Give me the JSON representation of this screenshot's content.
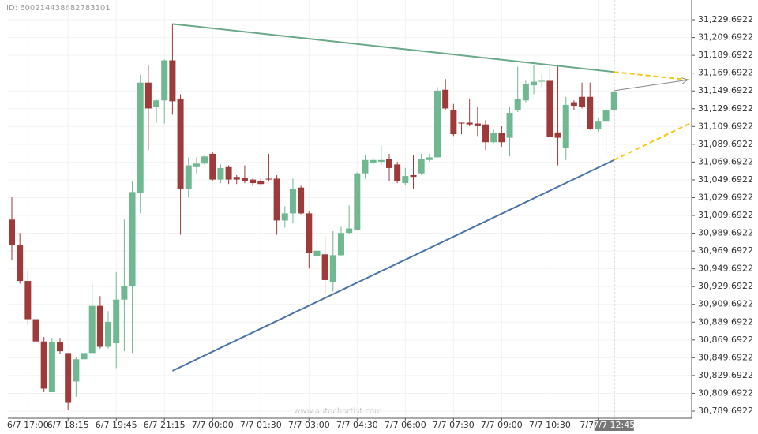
{
  "header": {
    "id_text": "ID: 600214438682783101"
  },
  "watermark": "www.autochartist.com",
  "chart_data": {
    "type": "candlestick",
    "up_color": "#6fb891",
    "down_color": "#9e3a3a",
    "categories": [
      null,
      null,
      "6/7 17:00",
      null,
      null,
      null,
      null,
      "6/7 18:15",
      null,
      null,
      null,
      null,
      null,
      "6/7 19:45",
      null,
      null,
      null,
      null,
      null,
      "6/7 21:15",
      null,
      null,
      null,
      null,
      null,
      "7/7 00:00",
      null,
      null,
      null,
      null,
      null,
      "7/7 01:30",
      null,
      null,
      null,
      null,
      null,
      "7/7 03:00",
      null,
      null,
      null,
      null,
      null,
      "7/7 04:30",
      null,
      null,
      null,
      null,
      null,
      "7/7 06:00",
      null,
      null,
      null,
      null,
      null,
      "7/7 07:30",
      null,
      null,
      null,
      null,
      null,
      "7/7 09:00",
      null,
      null,
      null,
      null,
      null,
      "7/7 10:30",
      null,
      null,
      null,
      null,
      null,
      "7/7",
      null,
      "7/7 12:45"
    ],
    "open": [
      31005,
      30976,
      30936,
      30893,
      30868,
      30811,
      30867,
      30855,
      30823,
      30848,
      30855,
      30908,
      30862,
      30866,
      30915,
      30930,
      31035,
      31159,
      31132,
      31139,
      31184,
      31141,
      31039,
      31064,
      31068,
      31079,
      31050,
      31064,
      31053,
      31052,
      31050,
      31048,
      31051,
      31051,
      31004,
      31012,
      31041,
      31012,
      30964,
      30966,
      30935,
      30965,
      30990,
      30993,
      31057,
      31069,
      31070,
      31073,
      31067,
      31046,
      31055,
      31057,
      31072,
      31075,
      31151,
      31128,
      31114,
      31114,
      31113,
      31112,
      31092,
      31102,
      31097,
      31128,
      31139,
      31156,
      31160,
      31161,
      31103,
      31086,
      31137,
      31143,
      31143,
      31107,
      31116,
      31128
    ],
    "high": [
      31030,
      30990,
      30948,
      30919,
      30873,
      30872,
      30872,
      30855,
      30850,
      30862,
      30933,
      30919,
      30902,
      30946,
      31005,
      31048,
      31168,
      31179,
      31141,
      31185,
      31225,
      31146,
      31075,
      31075,
      31077,
      31081,
      31067,
      31066,
      31055,
      31066,
      31052,
      31052,
      31079,
      31055,
      31020,
      31051,
      31043,
      31014,
      30988,
      30986,
      30992,
      30997,
      31021,
      31058,
      31078,
      31075,
      31088,
      31079,
      31070,
      31063,
      31078,
      31079,
      31079,
      31154,
      31163,
      31135,
      31114,
      31141,
      31132,
      31117,
      31106,
      31110,
      31132,
      31177,
      31161,
      31179,
      31168,
      31177,
      31177,
      31143,
      31139,
      31159,
      31159,
      31119,
      31132,
      31150
    ],
    "low": [
      30959,
      30933,
      30886,
      30844,
      30811,
      30811,
      30854,
      30791,
      30806,
      30817,
      30855,
      30860,
      30860,
      30838,
      30857,
      30855,
      31012,
      31083,
      31114,
      31113,
      31123,
      30988,
      31030,
      31057,
      31066,
      31048,
      31046,
      31045,
      31045,
      31046,
      31043,
      31043,
      31048,
      30988,
      30996,
      31001,
      31011,
      30950,
      30959,
      30922,
      30924,
      30964,
      30989,
      30993,
      31051,
      31066,
      31067,
      31048,
      31046,
      31044,
      31039,
      31055,
      31070,
      31075,
      31128,
      31099,
      31101,
      31110,
      31099,
      31083,
      31091,
      31087,
      31076,
      31126,
      31137,
      31146,
      31154,
      31096,
      31066,
      31072,
      31128,
      31130,
      31106,
      31104,
      31075,
      31127
    ],
    "close": [
      30976,
      30936,
      30893,
      30868,
      30815,
      30867,
      30857,
      30799,
      30848,
      30855,
      30908,
      30862,
      30890,
      30915,
      30930,
      31036,
      31159,
      31130,
      31139,
      31184,
      31138,
      31039,
      31066,
      31068,
      31076,
      31050,
      31063,
      31050,
      31050,
      31048,
      31046,
      31045,
      31050,
      31004,
      31012,
      31039,
      31012,
      30968,
      30970,
      30937,
      30965,
      30990,
      30995,
      31057,
      31072,
      31072,
      31072,
      31063,
      31048,
      31054,
      31053,
      31073,
      31075,
      31150,
      31130,
      31101,
      31113,
      31112,
      31110,
      31092,
      31102,
      31092,
      31125,
      31141,
      31157,
      31160,
      31161,
      31098,
      31097,
      31134,
      31133,
      31132,
      31107,
      31116,
      31128,
      31149
    ],
    "ylim": [
      30781.7,
      31251.9
    ],
    "yticks": [
      {
        "value": 30789.6922,
        "label": "30,789.6922"
      },
      {
        "value": 30809.6922,
        "label": "30,809.6922"
      },
      {
        "value": 30829.6922,
        "label": "30,829.6922"
      },
      {
        "value": 30849.6922,
        "label": "30,849.6922"
      },
      {
        "value": 30869.6922,
        "label": "30,869.6922"
      },
      {
        "value": 30889.6922,
        "label": "30,889.6922"
      },
      {
        "value": 30909.6922,
        "label": "30,909.6922"
      },
      {
        "value": 30929.6922,
        "label": "30,929.6922"
      },
      {
        "value": 30949.6922,
        "label": "30,949.6922"
      },
      {
        "value": 30969.6922,
        "label": "30,969.6922"
      },
      {
        "value": 30989.6922,
        "label": "30,989.6922"
      },
      {
        "value": 31009.6922,
        "label": "31,009.6922"
      },
      {
        "value": 31029.6922,
        "label": "31,029.6922"
      },
      {
        "value": 31049.6922,
        "label": "31,049.6922"
      },
      {
        "value": 31069.6922,
        "label": "31,069.6922"
      },
      {
        "value": 31089.6922,
        "label": "31,089.6922"
      },
      {
        "value": 31109.6922,
        "label": "31,109.6922"
      },
      {
        "value": 31129.6922,
        "label": "31,129.6922"
      },
      {
        "value": 31149.6922,
        "label": "31,149.6922"
      },
      {
        "value": 31169.6922,
        "label": "31,169.6922"
      },
      {
        "value": 31189.6922,
        "label": "31,189.6922"
      },
      {
        "value": 31209.6922,
        "label": "31,209.6922"
      },
      {
        "value": 31229.6922,
        "label": "31,229.6922"
      }
    ],
    "grid": true,
    "trendlines": [
      {
        "color": "#6aa88a",
        "x": [
          20,
          75
        ],
        "values": [
          31225,
          31171
        ]
      },
      {
        "color": "#4a74a8",
        "x": [
          20,
          75
        ],
        "values": [
          30835,
          31072
        ]
      },
      {
        "color": "#f2c811",
        "dashed": true,
        "x": [
          75,
          84.4
        ],
        "values": [
          31171,
          31162
        ]
      },
      {
        "color": "#f2c811",
        "dashed": true,
        "x": [
          75,
          84.4
        ],
        "values": [
          31072,
          31113
        ]
      },
      {
        "color": "#888888",
        "arrow": true,
        "x": [
          75,
          84.1
        ],
        "values": [
          31150,
          31162
        ]
      }
    ]
  }
}
